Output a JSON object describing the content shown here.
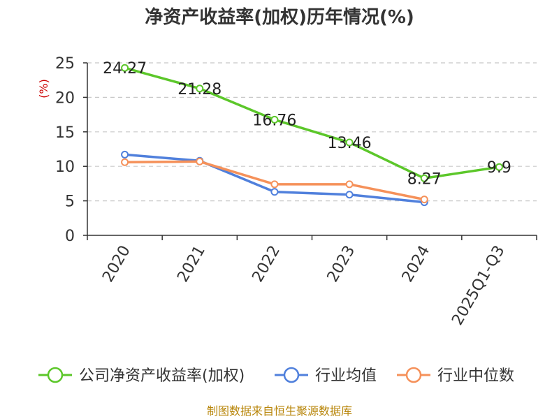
{
  "chart_data": {
    "type": "line",
    "title": "净资产收益率(加权)历年情况(%)",
    "ylabel": "(%)",
    "xlabel": "",
    "categories": [
      "2020",
      "2021",
      "2022",
      "2023",
      "2024",
      "2025Q1-Q3"
    ],
    "ylim": [
      0,
      25
    ],
    "yticks": [
      "0",
      "5",
      "10",
      "15",
      "20",
      "25"
    ],
    "grid": true,
    "legend_position": "bottom",
    "series": [
      {
        "name": "公司净资产收益率(加权)",
        "color": "#5cc72a",
        "values": [
          24.27,
          21.28,
          16.76,
          13.46,
          8.27,
          9.9
        ],
        "labels": [
          "24.27",
          "21.28",
          "16.76",
          "13.46",
          "8.27",
          "9.9"
        ]
      },
      {
        "name": "行业均值",
        "color": "#5080dc",
        "values": [
          11.7,
          10.8,
          6.3,
          5.9,
          4.8,
          null
        ]
      },
      {
        "name": "行业中位数",
        "color": "#f5915a",
        "values": [
          10.6,
          10.7,
          7.4,
          7.4,
          5.2,
          null
        ]
      }
    ],
    "source": "制图数据来自恒生聚源数据库"
  }
}
